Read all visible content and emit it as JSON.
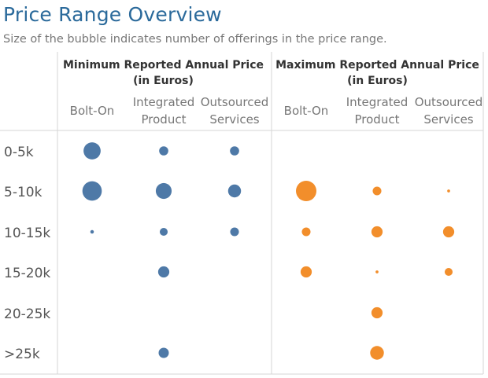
{
  "header": {
    "title": "Price Range Overview",
    "subtitle": "Size of the bubble indicates number of offerings in the price range."
  },
  "chart_data": {
    "type": "scatter",
    "title": "Price Range Overview",
    "subtitle": "Size of the bubble indicates number of offerings in the price range.",
    "rows": [
      "0-5k",
      "5-10k",
      "10-15k",
      "15-20k",
      "20-25k",
      ">25k"
    ],
    "groups": [
      {
        "name": [
          "Minimum Reported Annual Price",
          "(in Euros)"
        ],
        "color": "#4e79a7",
        "categories": [
          [
            "Bolt-On"
          ],
          [
            "Integrated",
            "Product"
          ],
          [
            "Outsourced",
            "Services"
          ]
        ],
        "sizes": [
          [
            7,
            2,
            2
          ],
          [
            9,
            6,
            4
          ],
          [
            0.3,
            1.5,
            1.8
          ],
          [
            0,
            3,
            0
          ],
          [
            0,
            0,
            0
          ],
          [
            0,
            2.5,
            0
          ]
        ]
      },
      {
        "name": [
          "Maximum Reported Annual Price",
          "(in Euros)"
        ],
        "color": "#f28e2b",
        "categories": [
          [
            "Bolt-On"
          ],
          [
            "Integrated",
            "Product"
          ],
          [
            "Outsourced",
            "Services"
          ]
        ],
        "sizes": [
          [
            0,
            0,
            0
          ],
          [
            10,
            1.8,
            0.2
          ],
          [
            1.8,
            3,
            3
          ],
          [
            3,
            0.2,
            1.5
          ],
          [
            0,
            3,
            0
          ],
          [
            0,
            4.5,
            0
          ]
        ]
      }
    ],
    "size_legend": "Size of the bubble indicates number of offerings in the price range.",
    "grid": false
  }
}
